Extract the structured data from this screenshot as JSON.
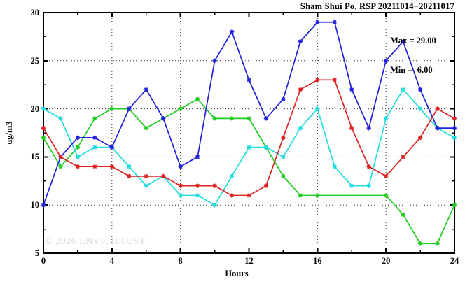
{
  "header": {
    "title": "Sham Shui Po, RSP 20211014−20211017"
  },
  "annotations": {
    "max": "Max = 29.00",
    "min": "Min =  6.00"
  },
  "axes": {
    "x_label": "Hours",
    "y_label": "ug/m3"
  },
  "watermark": "© 2026 ENVF, HKUST",
  "chart_data": {
    "type": "line",
    "title": "Sham Shui Po, RSP 20211014-20211017",
    "xlabel": "Hours",
    "ylabel": "ug/m3",
    "xlim": [
      0,
      24
    ],
    "ylim": [
      5,
      30
    ],
    "x_ticks": [
      0,
      4,
      8,
      12,
      16,
      20,
      24
    ],
    "y_ticks": [
      5,
      10,
      15,
      20,
      25,
      30
    ],
    "x_minor_ticks": [
      2,
      6,
      10,
      14,
      18,
      22
    ],
    "y_minor_ticks": [
      7.5,
      12.5,
      17.5,
      22.5,
      27.5
    ],
    "grid": true,
    "grid_x": [
      4,
      8,
      12,
      16,
      20
    ],
    "grid_y": [
      10,
      15,
      20,
      25
    ],
    "max_shown": 29.0,
    "min_shown": 6.0,
    "x": [
      0,
      1,
      2,
      3,
      4,
      5,
      6,
      7,
      8,
      9,
      10,
      11,
      12,
      13,
      14,
      15,
      16,
      17,
      18,
      19,
      20,
      21,
      22,
      23,
      24
    ],
    "series": [
      {
        "name": "green",
        "color": "#22cc22",
        "values": [
          17,
          14,
          16,
          19,
          20,
          20,
          18,
          19,
          20,
          21,
          19,
          19,
          19,
          16,
          13,
          11,
          11,
          null,
          null,
          null,
          11,
          9,
          6,
          6,
          10
        ]
      },
      {
        "name": "cyan",
        "color": "#22dddd",
        "values": [
          20,
          19,
          15,
          16,
          16,
          14,
          12,
          13,
          11,
          11,
          10,
          13,
          16,
          16,
          15,
          18,
          20,
          14,
          12,
          12,
          19,
          22,
          20,
          18,
          17
        ]
      },
      {
        "name": "blue",
        "color": "#2222dd",
        "values": [
          10,
          15,
          17,
          17,
          16,
          20,
          22,
          19,
          14,
          15,
          25,
          28,
          23,
          19,
          21,
          27,
          29,
          29,
          22,
          18,
          25,
          27,
          22,
          18,
          18
        ]
      },
      {
        "name": "red",
        "color": "#dd2222",
        "values": [
          18,
          15,
          14,
          14,
          14,
          13,
          13,
          13,
          12,
          12,
          12,
          11,
          11,
          12,
          17,
          22,
          23,
          23,
          18,
          14,
          13,
          15,
          17,
          20,
          19
        ]
      }
    ]
  }
}
